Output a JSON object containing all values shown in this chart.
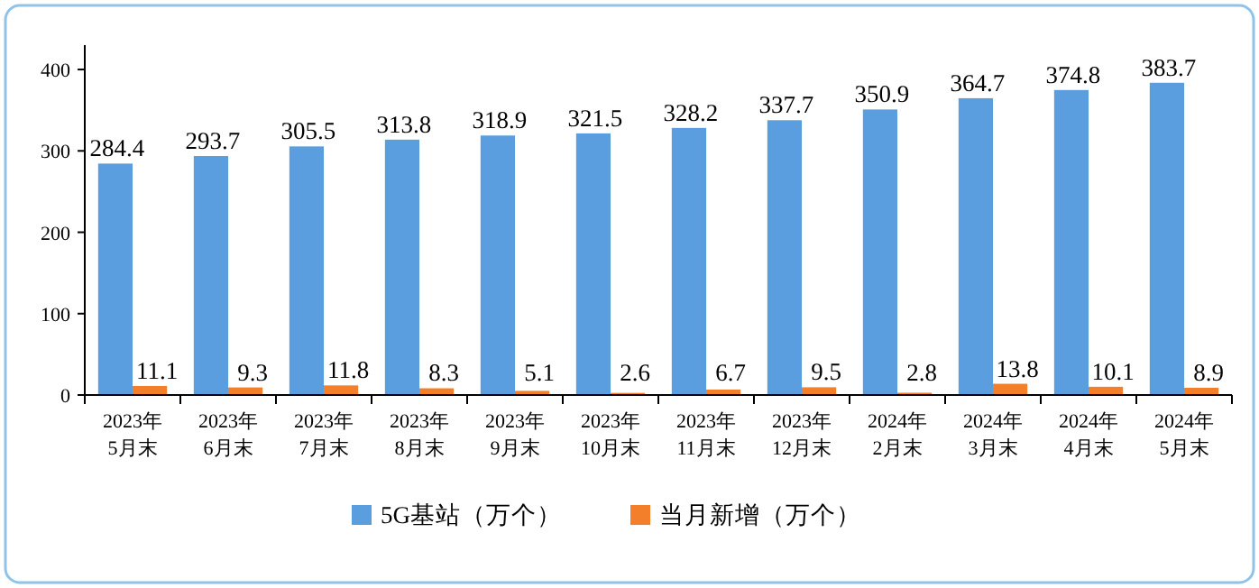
{
  "chart_data": {
    "type": "bar",
    "categories": [
      "2023年\n5月末",
      "2023年\n6月末",
      "2023年\n7月末",
      "2023年\n8月末",
      "2023年\n9月末",
      "2023年\n10月末",
      "2023年\n11月末",
      "2023年\n12月末",
      "2024年\n2月末",
      "2024年\n3月末",
      "2024年\n4月末",
      "2024年\n5月末"
    ],
    "series": [
      {
        "name": "5G基站（万个）",
        "color": "#5a9ee0",
        "values": [
          284.4,
          293.7,
          305.5,
          313.8,
          318.9,
          321.5,
          328.2,
          337.7,
          350.9,
          364.7,
          374.8,
          383.7
        ]
      },
      {
        "name": "当月新增（万个）",
        "color": "#f47f2a",
        "values": [
          11.1,
          9.3,
          11.8,
          8.3,
          5.1,
          2.6,
          6.7,
          9.5,
          2.8,
          13.8,
          10.1,
          8.9
        ]
      }
    ],
    "ylim": [
      0,
      430
    ],
    "yticks": [
      0,
      100,
      200,
      300,
      400
    ],
    "data_labels": true,
    "grid": false,
    "legend": "bottom"
  }
}
